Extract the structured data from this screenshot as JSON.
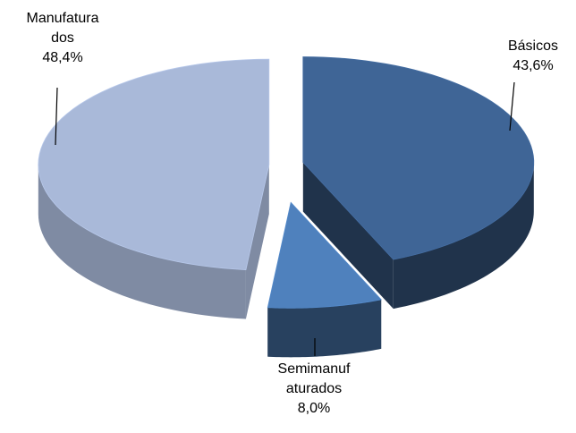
{
  "chart_data": {
    "type": "pie3d",
    "categories": [
      "Básicos",
      "Semimanufaturados",
      "Manufaturados"
    ],
    "values": [
      43.6,
      8.0,
      48.4
    ],
    "value_labels": [
      "43,6%",
      "8,0%",
      "48,4%"
    ],
    "colors": [
      "#3f6596",
      "#4f81bd",
      "#a9b9d9"
    ]
  }
}
